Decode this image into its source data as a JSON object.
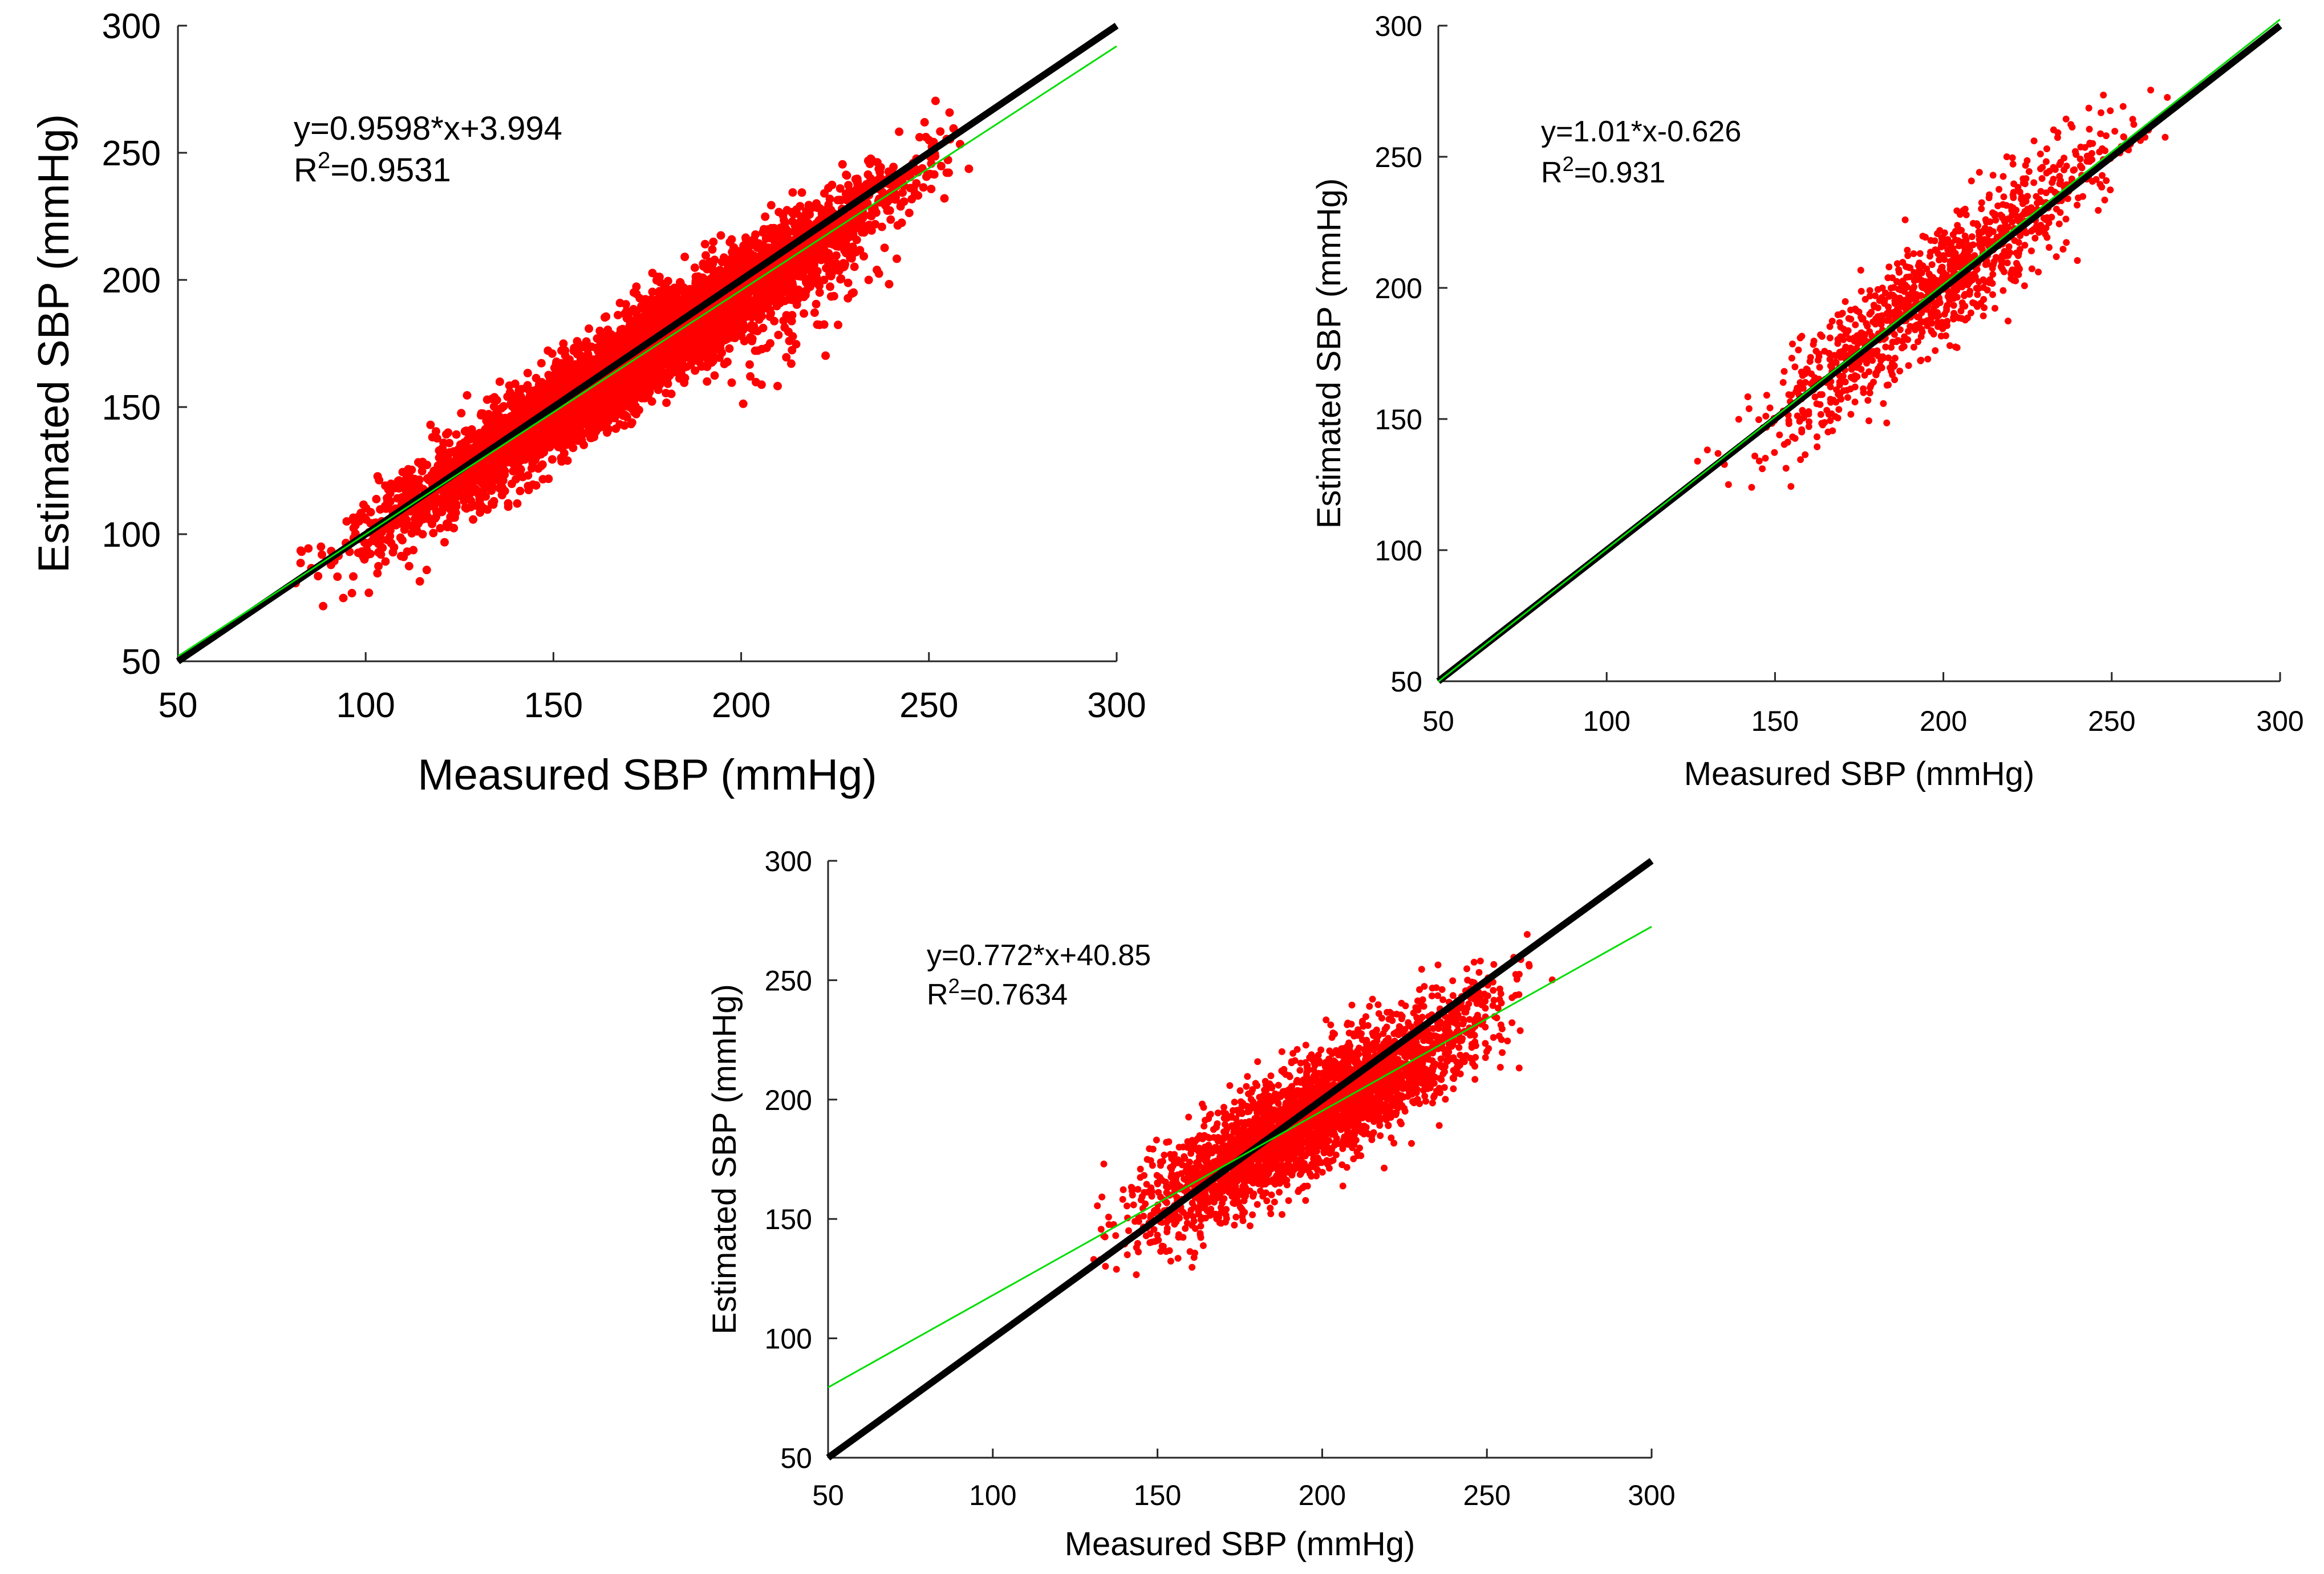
{
  "chart_data": [
    {
      "id": "plot-top-left",
      "type": "scatter",
      "xlabel": "Measured SBP (mmHg)",
      "ylabel": "Estimated SBP (mmHg)",
      "xlim": [
        50,
        300
      ],
      "ylim": [
        50,
        300
      ],
      "xticks": [
        "50",
        "100",
        "150",
        "200",
        "250",
        "300"
      ],
      "yticks": [
        "50",
        "100",
        "150",
        "200",
        "250",
        "300"
      ],
      "equation": "y=0.9598*x+3.994",
      "r2_label": "R",
      "r2_sup": "2",
      "r2_value": "=0.9531",
      "fit": {
        "slope": 0.9598,
        "intercept": 3.994,
        "x_range": [
          50,
          300
        ]
      },
      "identity_line": {
        "x_range": [
          50,
          300
        ]
      },
      "scatter": {
        "n": 5200,
        "x_range": [
          76,
          268
        ],
        "spread": 9,
        "seed": 11,
        "outlier_band": {
          "x_range": [
            200,
            245
          ],
          "offset": -28
        }
      },
      "colors": {
        "points": "#ff0000",
        "fit": "#00dd00",
        "identity": "#000000"
      }
    },
    {
      "id": "plot-top-right",
      "type": "scatter",
      "xlabel": "Measured SBP (mmHg)",
      "ylabel": "Estimated SBP (mmHg)",
      "xlim": [
        50,
        300
      ],
      "ylim": [
        50,
        300
      ],
      "xticks": [
        "50",
        "100",
        "150",
        "200",
        "250",
        "300"
      ],
      "yticks": [
        "50",
        "100",
        "150",
        "200",
        "250",
        "300"
      ],
      "equation": "y=1.01*x-0.626",
      "r2_label": "R",
      "r2_sup": "2",
      "r2_value": "=0.931",
      "fit": {
        "slope": 1.01,
        "intercept": -0.626,
        "x_range": [
          50,
          300
        ]
      },
      "identity_line": {
        "x_range": [
          50,
          300
        ]
      },
      "scatter": {
        "n": 1100,
        "x_range": [
          123,
          272
        ],
        "spread": 11,
        "seed": 23
      },
      "colors": {
        "points": "#ff0000",
        "fit": "#00dd00",
        "identity": "#000000"
      }
    },
    {
      "id": "plot-bottom",
      "type": "scatter",
      "xlabel": "Measured SBP (mmHg)",
      "ylabel": "Estimated SBP (mmHg)",
      "xlim": [
        50,
        300
      ],
      "ylim": [
        50,
        300
      ],
      "xticks": [
        "50",
        "100",
        "150",
        "200",
        "250",
        "300"
      ],
      "yticks": [
        "50",
        "100",
        "150",
        "200",
        "250",
        "300"
      ],
      "equation": "y=0.772*x+40.85",
      "r2_label": "R",
      "r2_sup": "2",
      "r2_value": "=0.7634",
      "fit": {
        "slope": 0.772,
        "intercept": 40.85,
        "x_range": [
          50,
          300
        ]
      },
      "identity_line": {
        "x_range": [
          50,
          300
        ]
      },
      "scatter": {
        "n": 3200,
        "x_range": [
          122,
          272
        ],
        "spread": 12,
        "seed": 37
      },
      "colors": {
        "points": "#ff0000",
        "fit": "#00dd00",
        "identity": "#000000"
      }
    }
  ]
}
